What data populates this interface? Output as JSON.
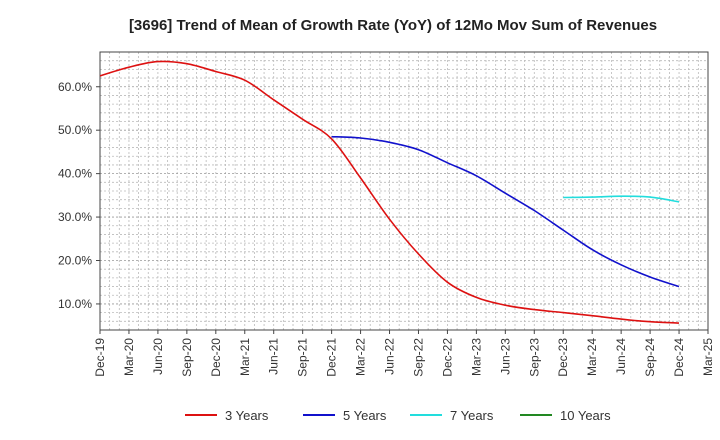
{
  "chart_data": {
    "type": "line",
    "title": "[3696]  Trend of Mean of Growth Rate (YoY) of 12Mo Mov Sum of Revenues",
    "xlabel": "",
    "ylabel": "",
    "y_unit": "%",
    "ylim": [
      4,
      68
    ],
    "y_ticks": [
      "10.0%",
      "20.0%",
      "30.0%",
      "40.0%",
      "50.0%",
      "60.0%"
    ],
    "y_tick_values": [
      10,
      20,
      30,
      40,
      50,
      60
    ],
    "x_ticks": [
      "Dec-19",
      "Mar-20",
      "Jun-20",
      "Sep-20",
      "Dec-20",
      "Mar-21",
      "Jun-21",
      "Sep-21",
      "Dec-21",
      "Mar-22",
      "Jun-22",
      "Sep-22",
      "Dec-22",
      "Mar-23",
      "Jun-23",
      "Sep-23",
      "Dec-23",
      "Mar-24",
      "Jun-24",
      "Sep-24",
      "Dec-24",
      "Mar-25"
    ],
    "xlim": [
      0,
      63
    ],
    "legend_position": "bottom",
    "series": [
      {
        "name": "3 Years",
        "color": "#dd1111",
        "x": [
          0,
          3,
          6,
          9,
          12,
          15,
          18,
          21,
          24,
          27,
          30,
          33,
          36,
          39,
          42,
          45,
          48,
          51,
          54,
          57,
          60
        ],
        "values": [
          62.5,
          64.5,
          65.8,
          65.3,
          63.5,
          61.5,
          57.0,
          52.5,
          48.0,
          39.0,
          29.5,
          21.5,
          15.0,
          11.5,
          9.7,
          8.7,
          8.0,
          7.3,
          6.5,
          5.9,
          5.6
        ]
      },
      {
        "name": "5 Years",
        "color": "#1111cc",
        "x": [
          24,
          27,
          30,
          33,
          36,
          39,
          42,
          45,
          48,
          51,
          54,
          57,
          60
        ],
        "values": [
          48.5,
          48.2,
          47.2,
          45.5,
          42.5,
          39.5,
          35.5,
          31.5,
          27.0,
          22.5,
          19.0,
          16.2,
          14.0
        ]
      },
      {
        "name": "7 Years",
        "color": "#22dddd",
        "x": [
          48,
          51,
          54,
          57,
          60
        ],
        "values": [
          34.5,
          34.6,
          34.8,
          34.6,
          33.5
        ]
      },
      {
        "name": "10 Years",
        "color": "#228822",
        "x": [],
        "values": []
      }
    ]
  }
}
